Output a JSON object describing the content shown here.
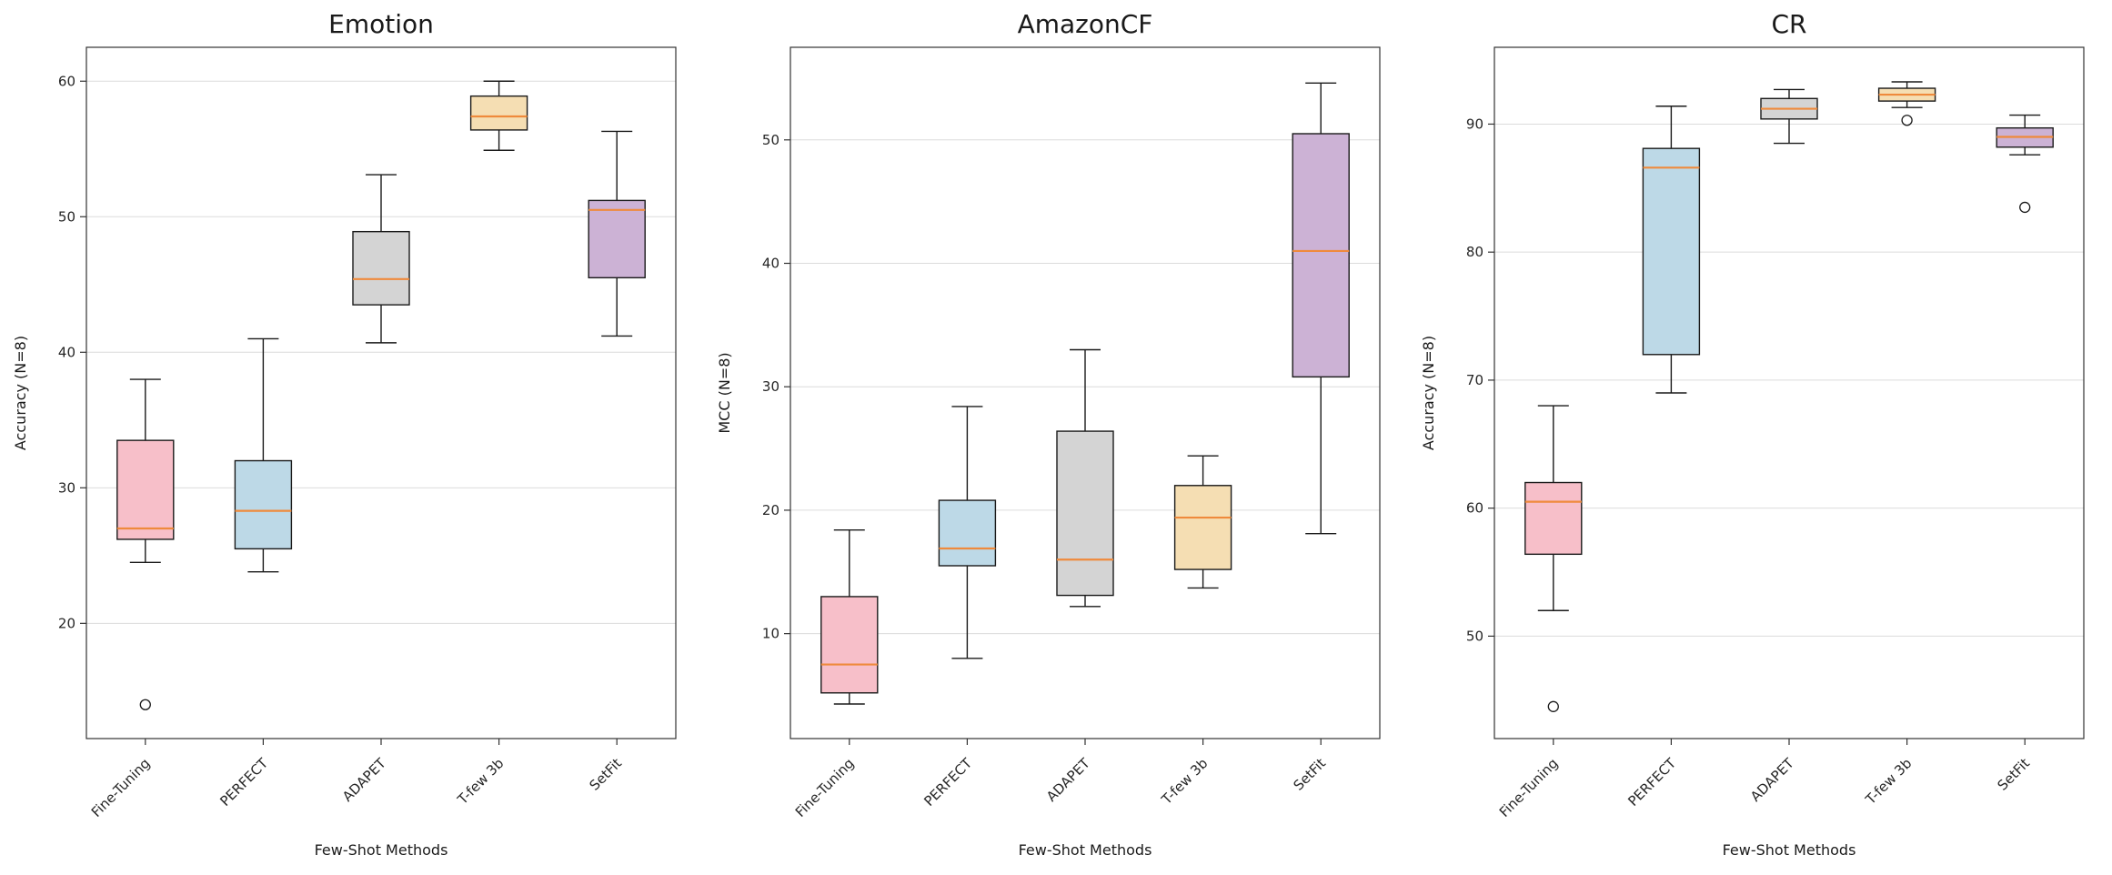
{
  "chart_data": [
    {
      "type": "boxplot",
      "title": "Emotion",
      "ylabel": "Accuracy (N=8)",
      "xlabel": "Few-Shot Methods",
      "yticks": [
        20,
        30,
        40,
        50,
        60
      ],
      "ylim": [
        11.5,
        62.5
      ],
      "grid": "horizontal",
      "categories": [
        "Fine-Tuning",
        "PERFECT",
        "ADAPET",
        "T-few 3b",
        "SetFit"
      ],
      "colors": [
        "#f7bfc9",
        "#bdd9e7",
        "#d4d4d4",
        "#f5deb3",
        "#ccb2d5"
      ],
      "median_color": "#ef8a3c",
      "boxes": [
        {
          "whisker_low": 24.5,
          "q1": 26.2,
          "median": 27.0,
          "q3": 33.5,
          "whisker_high": 38.0,
          "outliers": [
            14.0
          ]
        },
        {
          "whisker_low": 23.8,
          "q1": 25.5,
          "median": 28.3,
          "q3": 32.0,
          "whisker_high": 41.0,
          "outliers": []
        },
        {
          "whisker_low": 40.7,
          "q1": 43.5,
          "median": 45.4,
          "q3": 48.9,
          "whisker_high": 53.1,
          "outliers": []
        },
        {
          "whisker_low": 54.9,
          "q1": 56.4,
          "median": 57.4,
          "q3": 58.9,
          "whisker_high": 60.0,
          "outliers": []
        },
        {
          "whisker_low": 41.2,
          "q1": 45.5,
          "median": 50.5,
          "q3": 51.2,
          "whisker_high": 56.3,
          "outliers": []
        }
      ]
    },
    {
      "type": "boxplot",
      "title": "AmazonCF",
      "ylabel": "MCC (N=8)",
      "xlabel": "Few-Shot Methods",
      "yticks": [
        10,
        20,
        30,
        40,
        50
      ],
      "ylim": [
        1.5,
        57.5
      ],
      "grid": "horizontal",
      "categories": [
        "Fine-Tuning",
        "PERFECT",
        "ADAPET",
        "T-few 3b",
        "SetFit"
      ],
      "colors": [
        "#f7bfc9",
        "#bdd9e7",
        "#d4d4d4",
        "#f5deb3",
        "#ccb2d5"
      ],
      "median_color": "#ef8a3c",
      "boxes": [
        {
          "whisker_low": 4.3,
          "q1": 5.2,
          "median": 7.5,
          "q3": 13.0,
          "whisker_high": 18.4,
          "outliers": []
        },
        {
          "whisker_low": 8.0,
          "q1": 15.5,
          "median": 16.9,
          "q3": 20.8,
          "whisker_high": 28.4,
          "outliers": []
        },
        {
          "whisker_low": 12.2,
          "q1": 13.1,
          "median": 16.0,
          "q3": 26.4,
          "whisker_high": 33.0,
          "outliers": []
        },
        {
          "whisker_low": 13.7,
          "q1": 15.2,
          "median": 19.4,
          "q3": 22.0,
          "whisker_high": 24.4,
          "outliers": []
        },
        {
          "whisker_low": 18.1,
          "q1": 30.8,
          "median": 41.0,
          "q3": 50.5,
          "whisker_high": 54.6,
          "outliers": []
        }
      ]
    },
    {
      "type": "boxplot",
      "title": "CR",
      "ylabel": "Accuracy (N=8)",
      "xlabel": "Few-Shot Methods",
      "yticks": [
        50,
        60,
        70,
        80,
        90
      ],
      "ylim": [
        42.0,
        96.0
      ],
      "grid": "horizontal",
      "categories": [
        "Fine-Tuning",
        "PERFECT",
        "ADAPET",
        "T-few 3b",
        "SetFit"
      ],
      "colors": [
        "#f7bfc9",
        "#bdd9e7",
        "#d4d4d4",
        "#f5deb3",
        "#ccb2d5"
      ],
      "median_color": "#ef8a3c",
      "boxes": [
        {
          "whisker_low": 52.0,
          "q1": 56.4,
          "median": 60.5,
          "q3": 62.0,
          "whisker_high": 68.0,
          "outliers": [
            44.5
          ]
        },
        {
          "whisker_low": 69.0,
          "q1": 72.0,
          "median": 86.6,
          "q3": 88.1,
          "whisker_high": 91.4,
          "outliers": []
        },
        {
          "whisker_low": 88.5,
          "q1": 90.4,
          "median": 91.2,
          "q3": 92.0,
          "whisker_high": 92.7,
          "outliers": []
        },
        {
          "whisker_low": 91.3,
          "q1": 91.8,
          "median": 92.3,
          "q3": 92.8,
          "whisker_high": 93.3,
          "outliers": [
            90.3
          ]
        },
        {
          "whisker_low": 87.6,
          "q1": 88.2,
          "median": 89.0,
          "q3": 89.7,
          "whisker_high": 90.7,
          "outliers": [
            83.5
          ]
        }
      ]
    }
  ]
}
